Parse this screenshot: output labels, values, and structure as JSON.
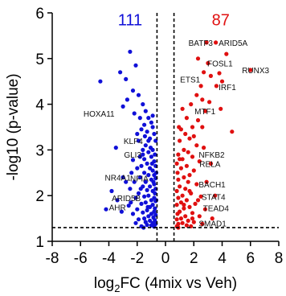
{
  "chart_data": {
    "type": "scatter",
    "xlabel": "log2FC (4mix vs Veh)",
    "xlabel_parts": {
      "prefix": "log",
      "sub": "2",
      "suffix": "FC (4mix vs Veh)"
    },
    "ylabel": "-log10 (p-value)",
    "xlim": [
      -8,
      8
    ],
    "ylim": [
      1,
      6
    ],
    "xticks": [
      -8,
      -6,
      -4,
      -2,
      0,
      2,
      4,
      6,
      8
    ],
    "yticks": [
      1,
      2,
      3,
      4,
      5,
      6
    ],
    "grid": false,
    "thresholds": {
      "x": [
        -0.6,
        0.6
      ],
      "y": 1.3
    },
    "counts": [
      {
        "text": "111",
        "color": "#1010d8",
        "x": -2.5,
        "y": 5.85
      },
      {
        "text": "87",
        "color": "#e01010",
        "x": 3.9,
        "y": 5.85
      }
    ],
    "series": [
      {
        "color": "#1010d8",
        "points": [
          [
            -2.5,
            5.15
          ],
          [
            -2.1,
            4.85
          ],
          [
            -4.6,
            4.5
          ],
          [
            -3.2,
            4.7
          ],
          [
            -2.8,
            4.55
          ],
          [
            -2.3,
            4.3
          ],
          [
            -1.9,
            4.2
          ],
          [
            -2.7,
            4.1
          ],
          [
            -1.6,
            4.0
          ],
          [
            -3.0,
            3.95
          ],
          [
            -1.4,
            3.85
          ],
          [
            -2.2,
            3.8
          ],
          [
            -1.8,
            3.7
          ],
          [
            -1.2,
            3.7
          ],
          [
            -1.0,
            3.6
          ],
          [
            -1.5,
            3.55
          ],
          [
            -0.9,
            3.5
          ],
          [
            -1.3,
            3.4
          ],
          [
            -1.7,
            3.45
          ],
          [
            -2.0,
            3.35
          ],
          [
            -0.8,
            3.35
          ],
          [
            -1.1,
            3.25
          ],
          [
            -1.9,
            3.2
          ],
          [
            -0.7,
            3.2
          ],
          [
            -1.4,
            3.1
          ],
          [
            -3.5,
            3.05
          ],
          [
            -1.6,
            3.0
          ],
          [
            -0.9,
            3.0
          ],
          [
            -1.2,
            2.95
          ],
          [
            -0.75,
            2.9
          ],
          [
            -1.8,
            2.85
          ],
          [
            -1.0,
            2.85
          ],
          [
            -1.5,
            2.8
          ],
          [
            -2.3,
            2.78
          ],
          [
            -0.8,
            2.75
          ],
          [
            -1.3,
            2.7
          ],
          [
            -1.7,
            2.65
          ],
          [
            -0.7,
            2.65
          ],
          [
            -2.0,
            2.6
          ],
          [
            -1.1,
            2.6
          ],
          [
            -0.9,
            2.55
          ],
          [
            -1.5,
            2.5
          ],
          [
            -2.4,
            2.5
          ],
          [
            -0.8,
            2.45
          ],
          [
            -1.2,
            2.45
          ],
          [
            -1.8,
            2.4
          ],
          [
            -3.0,
            2.4
          ],
          [
            -0.7,
            2.38
          ],
          [
            -1.0,
            2.35
          ],
          [
            -1.4,
            2.3
          ],
          [
            -2.2,
            2.3
          ],
          [
            -0.8,
            2.25
          ],
          [
            -1.6,
            2.2
          ],
          [
            -1.1,
            2.2
          ],
          [
            -0.7,
            2.15
          ],
          [
            -2.5,
            2.15
          ],
          [
            -1.3,
            2.12
          ],
          [
            -0.9,
            2.1
          ],
          [
            -1.9,
            2.05
          ],
          [
            -3.8,
            2.1
          ],
          [
            -0.75,
            2.05
          ],
          [
            -1.2,
            2.0
          ],
          [
            -1.5,
            1.98
          ],
          [
            -0.8,
            1.95
          ],
          [
            -2.1,
            1.95
          ],
          [
            -1.0,
            1.9
          ],
          [
            -3.4,
            1.9
          ],
          [
            -0.7,
            1.88
          ],
          [
            -1.4,
            1.85
          ],
          [
            -1.7,
            1.82
          ],
          [
            -0.9,
            1.8
          ],
          [
            -2.6,
            1.78
          ],
          [
            -1.1,
            1.75
          ],
          [
            -0.75,
            1.72
          ],
          [
            -2.0,
            1.7
          ],
          [
            -1.3,
            1.68
          ],
          [
            -0.8,
            1.65
          ],
          [
            -1.6,
            1.63
          ],
          [
            -4.2,
            1.7
          ],
          [
            -1.0,
            1.6
          ],
          [
            -0.7,
            1.58
          ],
          [
            -2.3,
            1.6
          ],
          [
            -1.2,
            1.55
          ],
          [
            -0.85,
            1.52
          ],
          [
            -1.5,
            1.5
          ],
          [
            -1.9,
            1.48
          ],
          [
            -0.75,
            1.46
          ],
          [
            -1.1,
            1.45
          ],
          [
            -1.4,
            1.42
          ],
          [
            -0.9,
            1.4
          ],
          [
            -2.1,
            1.4
          ],
          [
            -0.7,
            1.38
          ],
          [
            -1.3,
            1.36
          ],
          [
            -1.0,
            1.35
          ],
          [
            -1.7,
            1.33
          ],
          [
            -0.8,
            1.32
          ],
          [
            -3.1,
            1.65
          ],
          [
            -2.8,
            2.3
          ],
          [
            -1.6,
            2.9
          ],
          [
            -1.2,
            3.2
          ],
          [
            -0.95,
            2.7
          ],
          [
            -1.05,
            3.05
          ],
          [
            -1.45,
            3.3
          ],
          [
            -0.85,
            2.3
          ],
          [
            -1.25,
            1.75
          ],
          [
            -1.75,
            2.15
          ],
          [
            -0.65,
            1.9
          ],
          [
            -0.65,
            2.5
          ],
          [
            -1.55,
            1.3
          ],
          [
            -2.45,
            1.85
          ],
          [
            -0.9,
            3.75
          ]
        ]
      },
      {
        "color": "#e01010",
        "points": [
          [
            3.55,
            5.35
          ],
          [
            2.9,
            5.35
          ],
          [
            4.3,
            5.1
          ],
          [
            2.3,
            5.0
          ],
          [
            3.0,
            4.9
          ],
          [
            6.0,
            4.75
          ],
          [
            2.7,
            4.7
          ],
          [
            3.2,
            4.62
          ],
          [
            3.8,
            4.68
          ],
          [
            2.5,
            4.4
          ],
          [
            3.6,
            4.4
          ],
          [
            2.2,
            4.2
          ],
          [
            2.6,
            4.1
          ],
          [
            3.1,
            4.05
          ],
          [
            1.8,
            4.0
          ],
          [
            1.2,
            3.9
          ],
          [
            2.8,
            3.85
          ],
          [
            1.5,
            3.7
          ],
          [
            2.3,
            3.65
          ],
          [
            1.9,
            3.5
          ],
          [
            1.1,
            3.45
          ],
          [
            4.7,
            3.4
          ],
          [
            1.4,
            3.35
          ],
          [
            2.0,
            3.3
          ],
          [
            1.7,
            3.25
          ],
          [
            1.0,
            3.2
          ],
          [
            2.2,
            3.1
          ],
          [
            1.3,
            3.0
          ],
          [
            1.6,
            2.95
          ],
          [
            0.9,
            2.9
          ],
          [
            1.9,
            2.85
          ],
          [
            1.2,
            2.8
          ],
          [
            2.4,
            2.75
          ],
          [
            0.8,
            2.7
          ],
          [
            1.5,
            2.65
          ],
          [
            1.1,
            2.6
          ],
          [
            2.0,
            2.55
          ],
          [
            0.85,
            2.5
          ],
          [
            1.7,
            2.45
          ],
          [
            1.3,
            2.4
          ],
          [
            0.9,
            2.35
          ],
          [
            1.6,
            2.3
          ],
          [
            2.2,
            2.25
          ],
          [
            1.0,
            2.2
          ],
          [
            1.4,
            2.15
          ],
          [
            0.8,
            2.1
          ],
          [
            1.8,
            2.05
          ],
          [
            1.2,
            2.0
          ],
          [
            2.5,
            1.98
          ],
          [
            0.9,
            1.95
          ],
          [
            1.5,
            1.9
          ],
          [
            1.1,
            1.85
          ],
          [
            2.1,
            1.82
          ],
          [
            0.8,
            1.8
          ],
          [
            1.7,
            1.75
          ],
          [
            1.3,
            1.72
          ],
          [
            2.8,
            1.7
          ],
          [
            1.0,
            1.65
          ],
          [
            1.9,
            1.62
          ],
          [
            0.85,
            1.6
          ],
          [
            1.4,
            1.55
          ],
          [
            2.4,
            1.55
          ],
          [
            1.1,
            1.5
          ],
          [
            0.8,
            1.48
          ],
          [
            1.6,
            1.45
          ],
          [
            2.0,
            1.42
          ],
          [
            1.2,
            1.4
          ],
          [
            0.9,
            1.38
          ],
          [
            2.6,
            1.38
          ],
          [
            1.5,
            1.35
          ],
          [
            0.8,
            1.33
          ],
          [
            1.8,
            1.33
          ],
          [
            3.3,
            1.5
          ],
          [
            3.5,
            2.0
          ],
          [
            2.9,
            2.3
          ],
          [
            3.2,
            2.7
          ],
          [
            2.6,
            3.5
          ],
          [
            3.9,
            3.9
          ],
          [
            1.9,
            1.5
          ],
          [
            1.0,
            2.8
          ],
          [
            2.7,
            3.05
          ],
          [
            0.95,
            3.5
          ],
          [
            1.3,
            1.8
          ],
          [
            2.3,
            1.9
          ],
          [
            1.7,
            2.1
          ],
          [
            4.0,
            4.5
          ],
          [
            0.9,
            1.3
          ]
        ]
      }
    ],
    "annotations": [
      {
        "text": "BATF3",
        "x": 3.35,
        "y": 5.35,
        "anchor": "end"
      },
      {
        "text": "ARID5A",
        "x": 3.75,
        "y": 5.35,
        "anchor": "start"
      },
      {
        "text": "FOSL1",
        "x": 2.95,
        "y": 4.9,
        "anchor": "start"
      },
      {
        "text": "RUNX3",
        "x": 5.4,
        "y": 4.75,
        "anchor": "start"
      },
      {
        "text": "ETS1",
        "x": 2.45,
        "y": 4.55,
        "anchor": "end"
      },
      {
        "text": "IRF1",
        "x": 3.75,
        "y": 4.38,
        "anchor": "start"
      },
      {
        "text": "MTF1",
        "x": 2.05,
        "y": 3.85,
        "anchor": "start"
      },
      {
        "text": "HOXA11",
        "x": -3.6,
        "y": 3.8,
        "anchor": "end"
      },
      {
        "text": "KLF4",
        "x": -1.6,
        "y": 3.2,
        "anchor": "end"
      },
      {
        "text": "NFKB2",
        "x": 2.35,
        "y": 2.9,
        "anchor": "start"
      },
      {
        "text": "GLI3",
        "x": -1.7,
        "y": 2.9,
        "anchor": "end"
      },
      {
        "text": "RELA",
        "x": 2.4,
        "y": 2.7,
        "anchor": "start"
      },
      {
        "text": "NR4A1",
        "x": -2.45,
        "y": 2.4,
        "anchor": "end"
      },
      {
        "text": "NFIA",
        "x": -1.2,
        "y": 2.38,
        "anchor": "end"
      },
      {
        "text": "BACH1",
        "x": 2.35,
        "y": 2.25,
        "anchor": "start"
      },
      {
        "text": "STAT4",
        "x": 2.55,
        "y": 1.98,
        "anchor": "start"
      },
      {
        "text": "ARID5B",
        "x": -1.75,
        "y": 1.95,
        "anchor": "end"
      },
      {
        "text": "AHR",
        "x": -2.8,
        "y": 1.75,
        "anchor": "end"
      },
      {
        "text": "TEAD4",
        "x": 2.65,
        "y": 1.73,
        "anchor": "start"
      },
      {
        "text": "SMAD1",
        "x": 2.35,
        "y": 1.4,
        "anchor": "start"
      }
    ]
  }
}
